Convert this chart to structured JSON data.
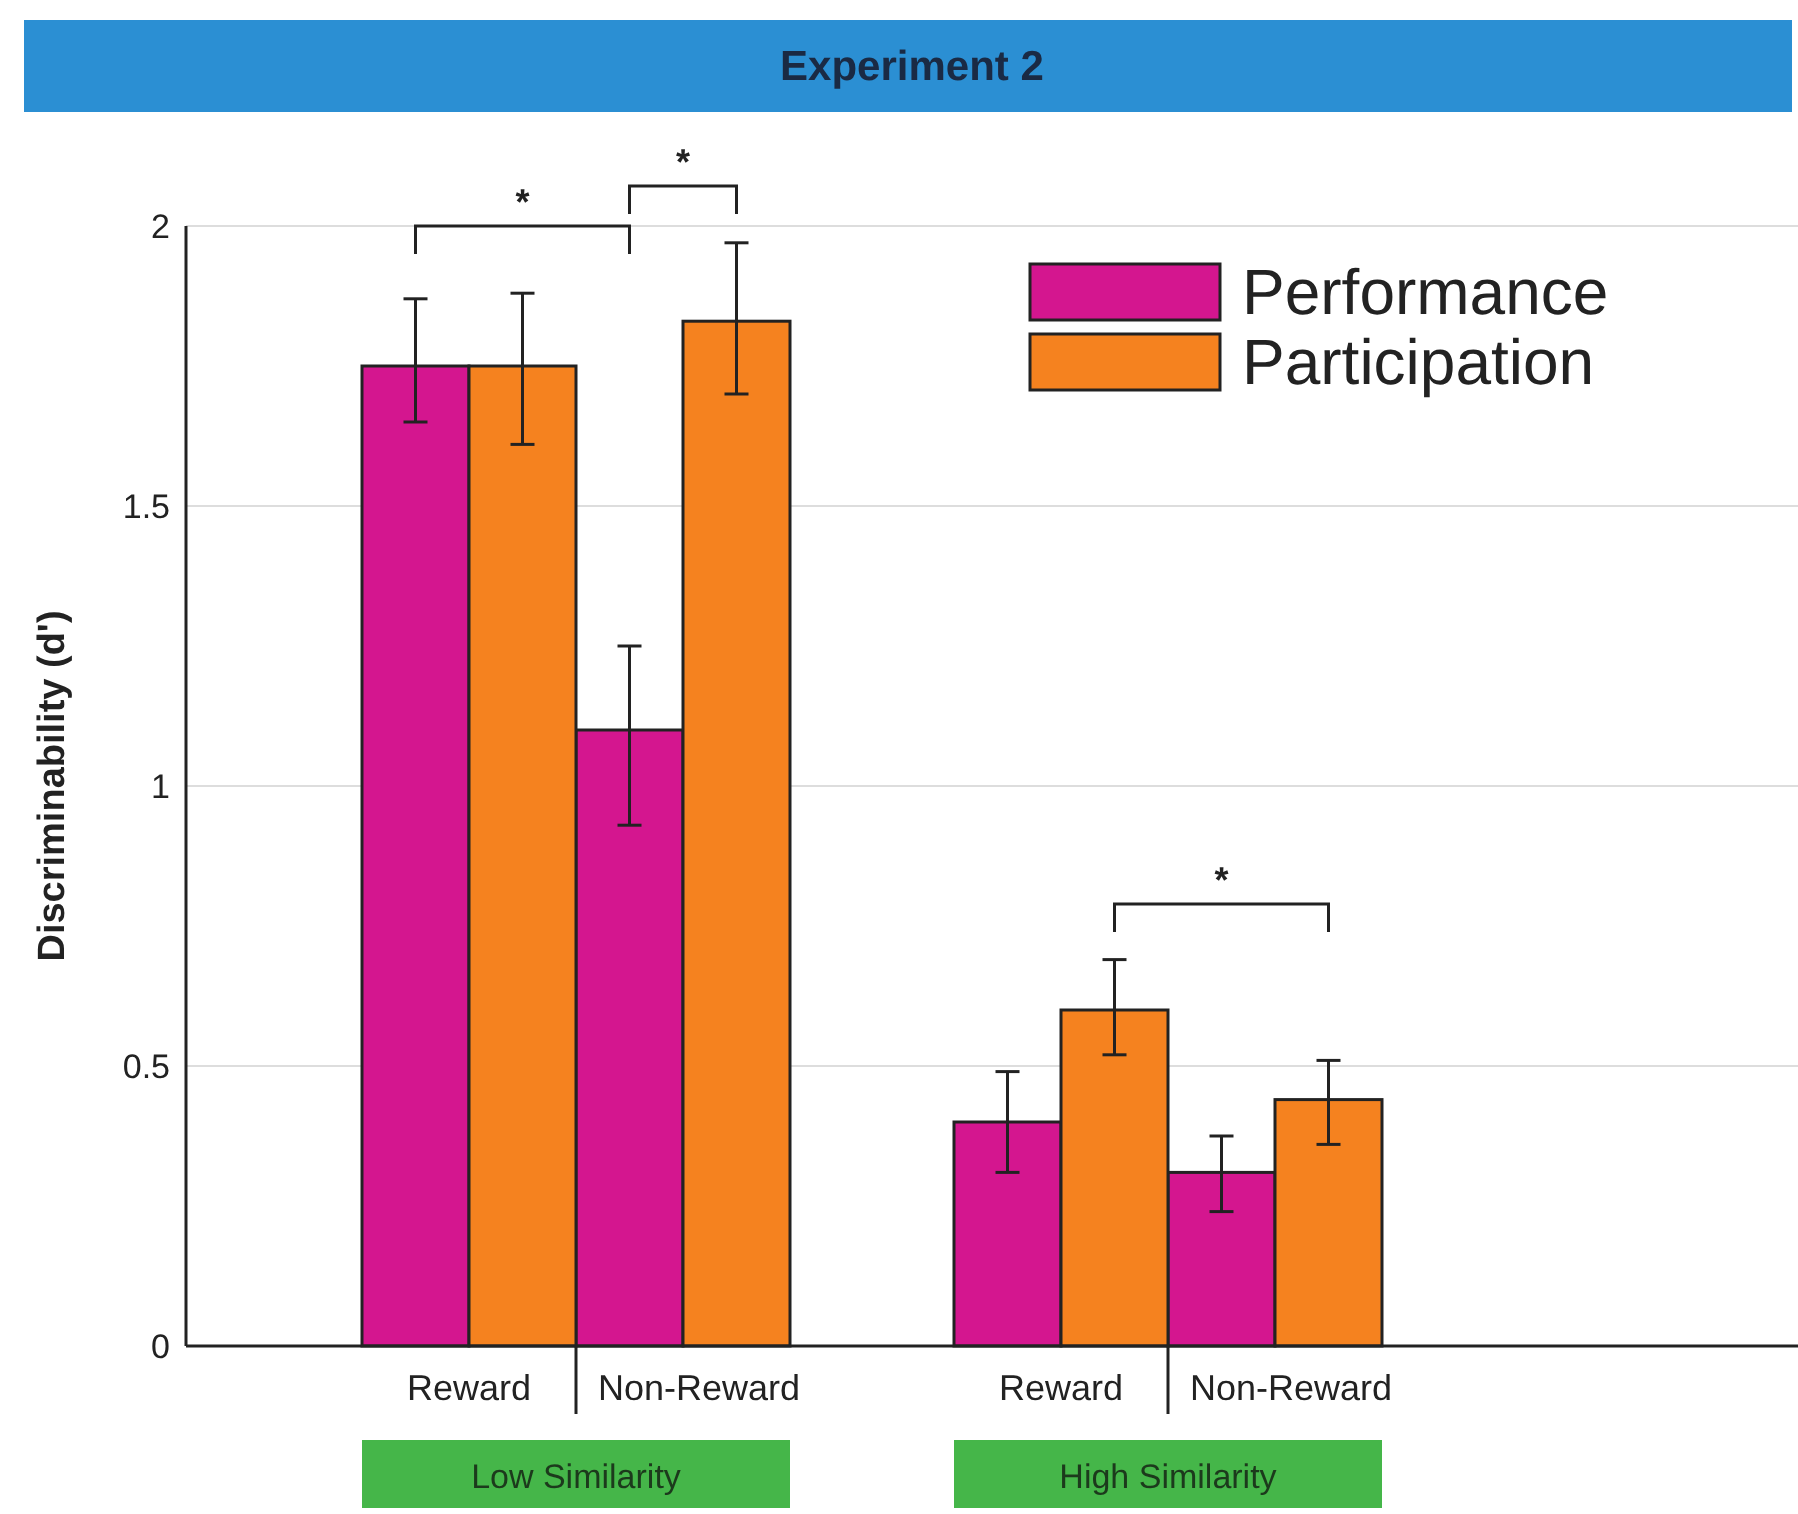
{
  "chart_data": {
    "type": "bar",
    "title": "Experiment 2",
    "ylabel": "Discriminability (d')",
    "categories": [
      "Reward",
      "Non-Reward",
      "Reward",
      "Non-Reward"
    ],
    "series": [
      {
        "name": "Performance",
        "color": "#d4168f",
        "values": [
          1.75,
          1.1,
          0.4,
          0.31
        ],
        "errors": [
          [
            1.65,
            1.87
          ],
          [
            0.93,
            1.25
          ],
          [
            0.31,
            0.49
          ],
          [
            0.24,
            0.375
          ]
        ]
      },
      {
        "name": "Participation",
        "color": "#f5821f",
        "values": [
          1.75,
          1.83,
          0.6,
          0.44
        ],
        "errors": [
          [
            1.61,
            1.88
          ],
          [
            1.7,
            1.97
          ],
          [
            0.52,
            0.69
          ],
          [
            0.36,
            0.51
          ]
        ]
      }
    ],
    "ylim": [
      0,
      2
    ],
    "yticks": [
      0,
      0.5,
      1,
      1.5,
      2
    ],
    "grid": "y",
    "legend": "top right",
    "annotations": [
      "Low Similarity",
      "High Similarity",
      "*",
      "*",
      "*"
    ]
  }
}
